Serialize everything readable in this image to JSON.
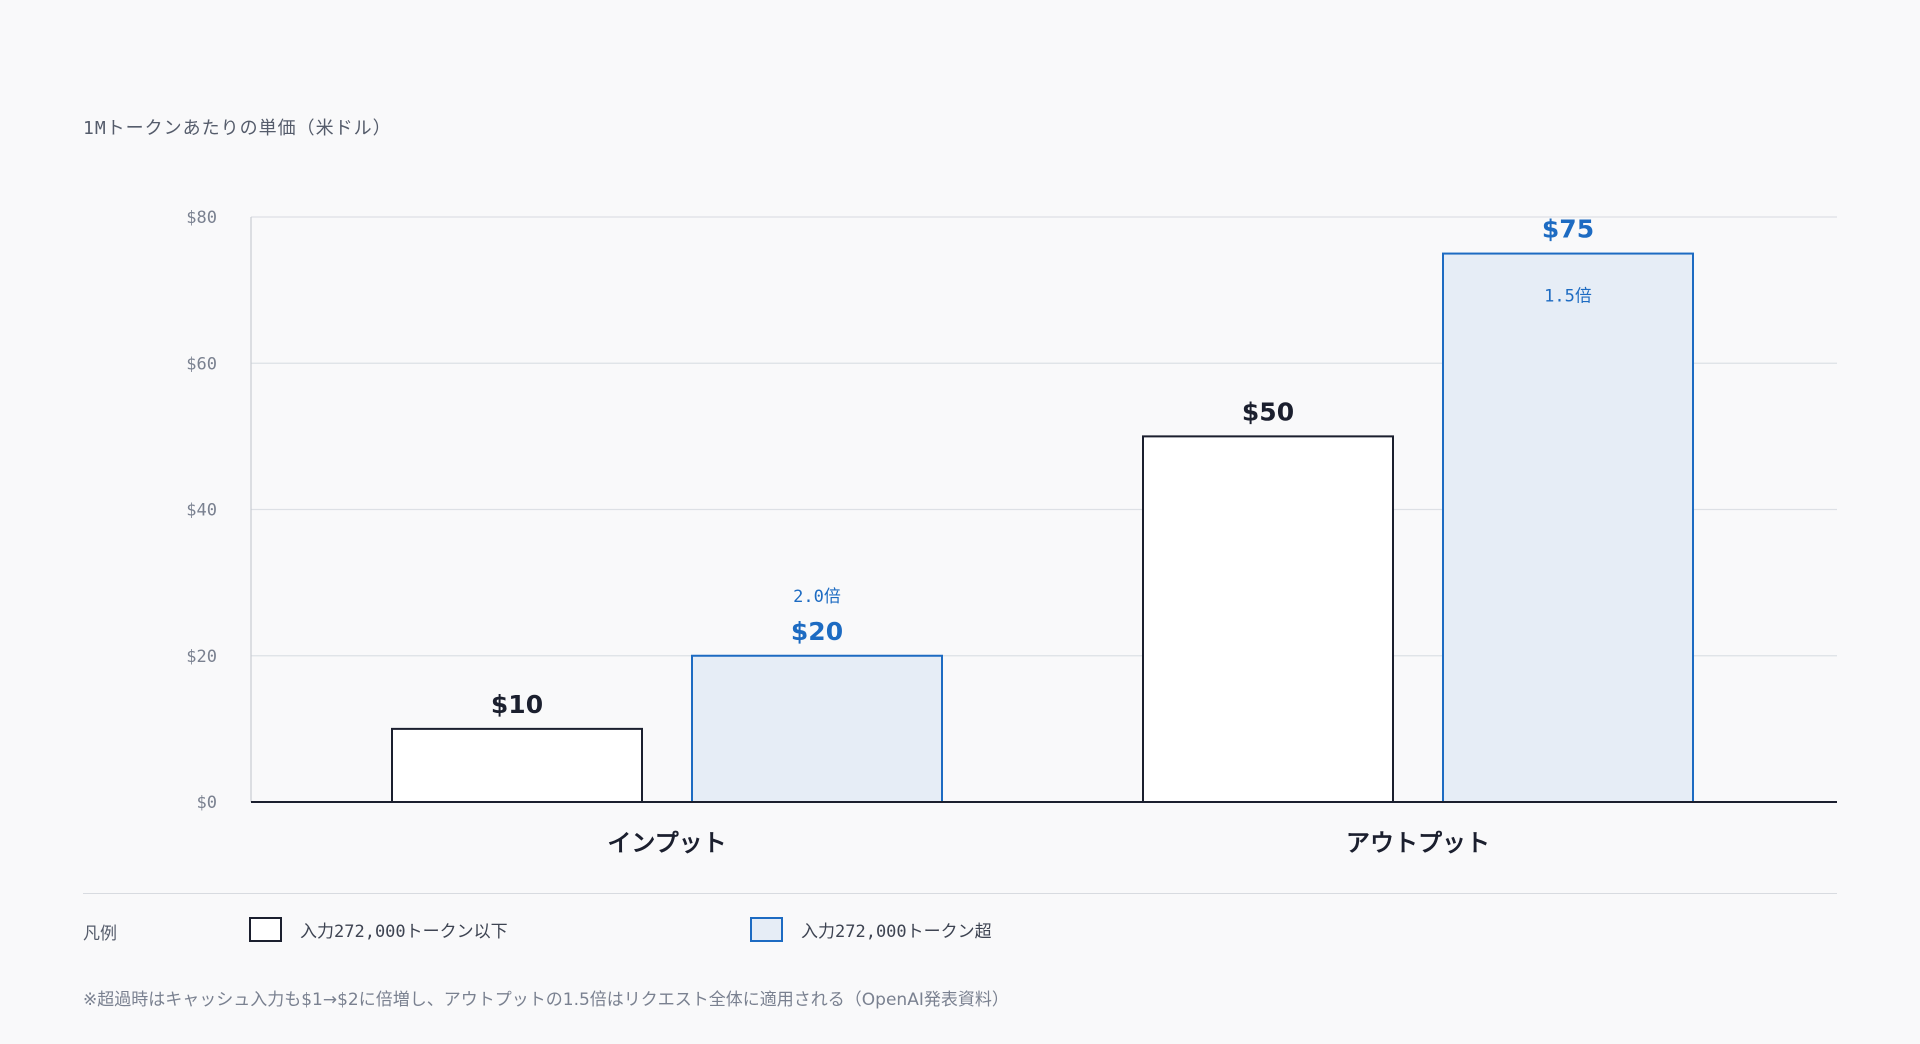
{
  "chart_data": {
    "type": "bar",
    "title": "1Mトークンあたりの単価（米ドル）",
    "categories": [
      "インプット",
      "アウトプット"
    ],
    "series": [
      {
        "name": "入力272,000トークン以下",
        "values": [
          10,
          50
        ],
        "value_labels": [
          "$10",
          "$50"
        ],
        "color": "#1b1f2e",
        "fill": "#ffffff"
      },
      {
        "name": "入力272,000トークン超",
        "values": [
          20,
          75
        ],
        "value_labels": [
          "$20",
          "$75"
        ],
        "ratio_labels": [
          "2.0倍",
          "1.5倍"
        ],
        "color": "#1d6bc2",
        "fill": "#e6edf6"
      }
    ],
    "ylim": [
      0,
      80
    ],
    "yticks": [
      0,
      20,
      40,
      60,
      80
    ],
    "ytick_labels": [
      "$0",
      "$20",
      "$40",
      "$60",
      "$80"
    ],
    "grid": true,
    "legend": {
      "title": "凡例",
      "placement": "bottom"
    },
    "footnote": "※超過時はキャッシュ入力も$1→$2に倍増し、アウトプットの1.5倍はリクエスト全体に適用される（OpenAI発表資料）"
  }
}
